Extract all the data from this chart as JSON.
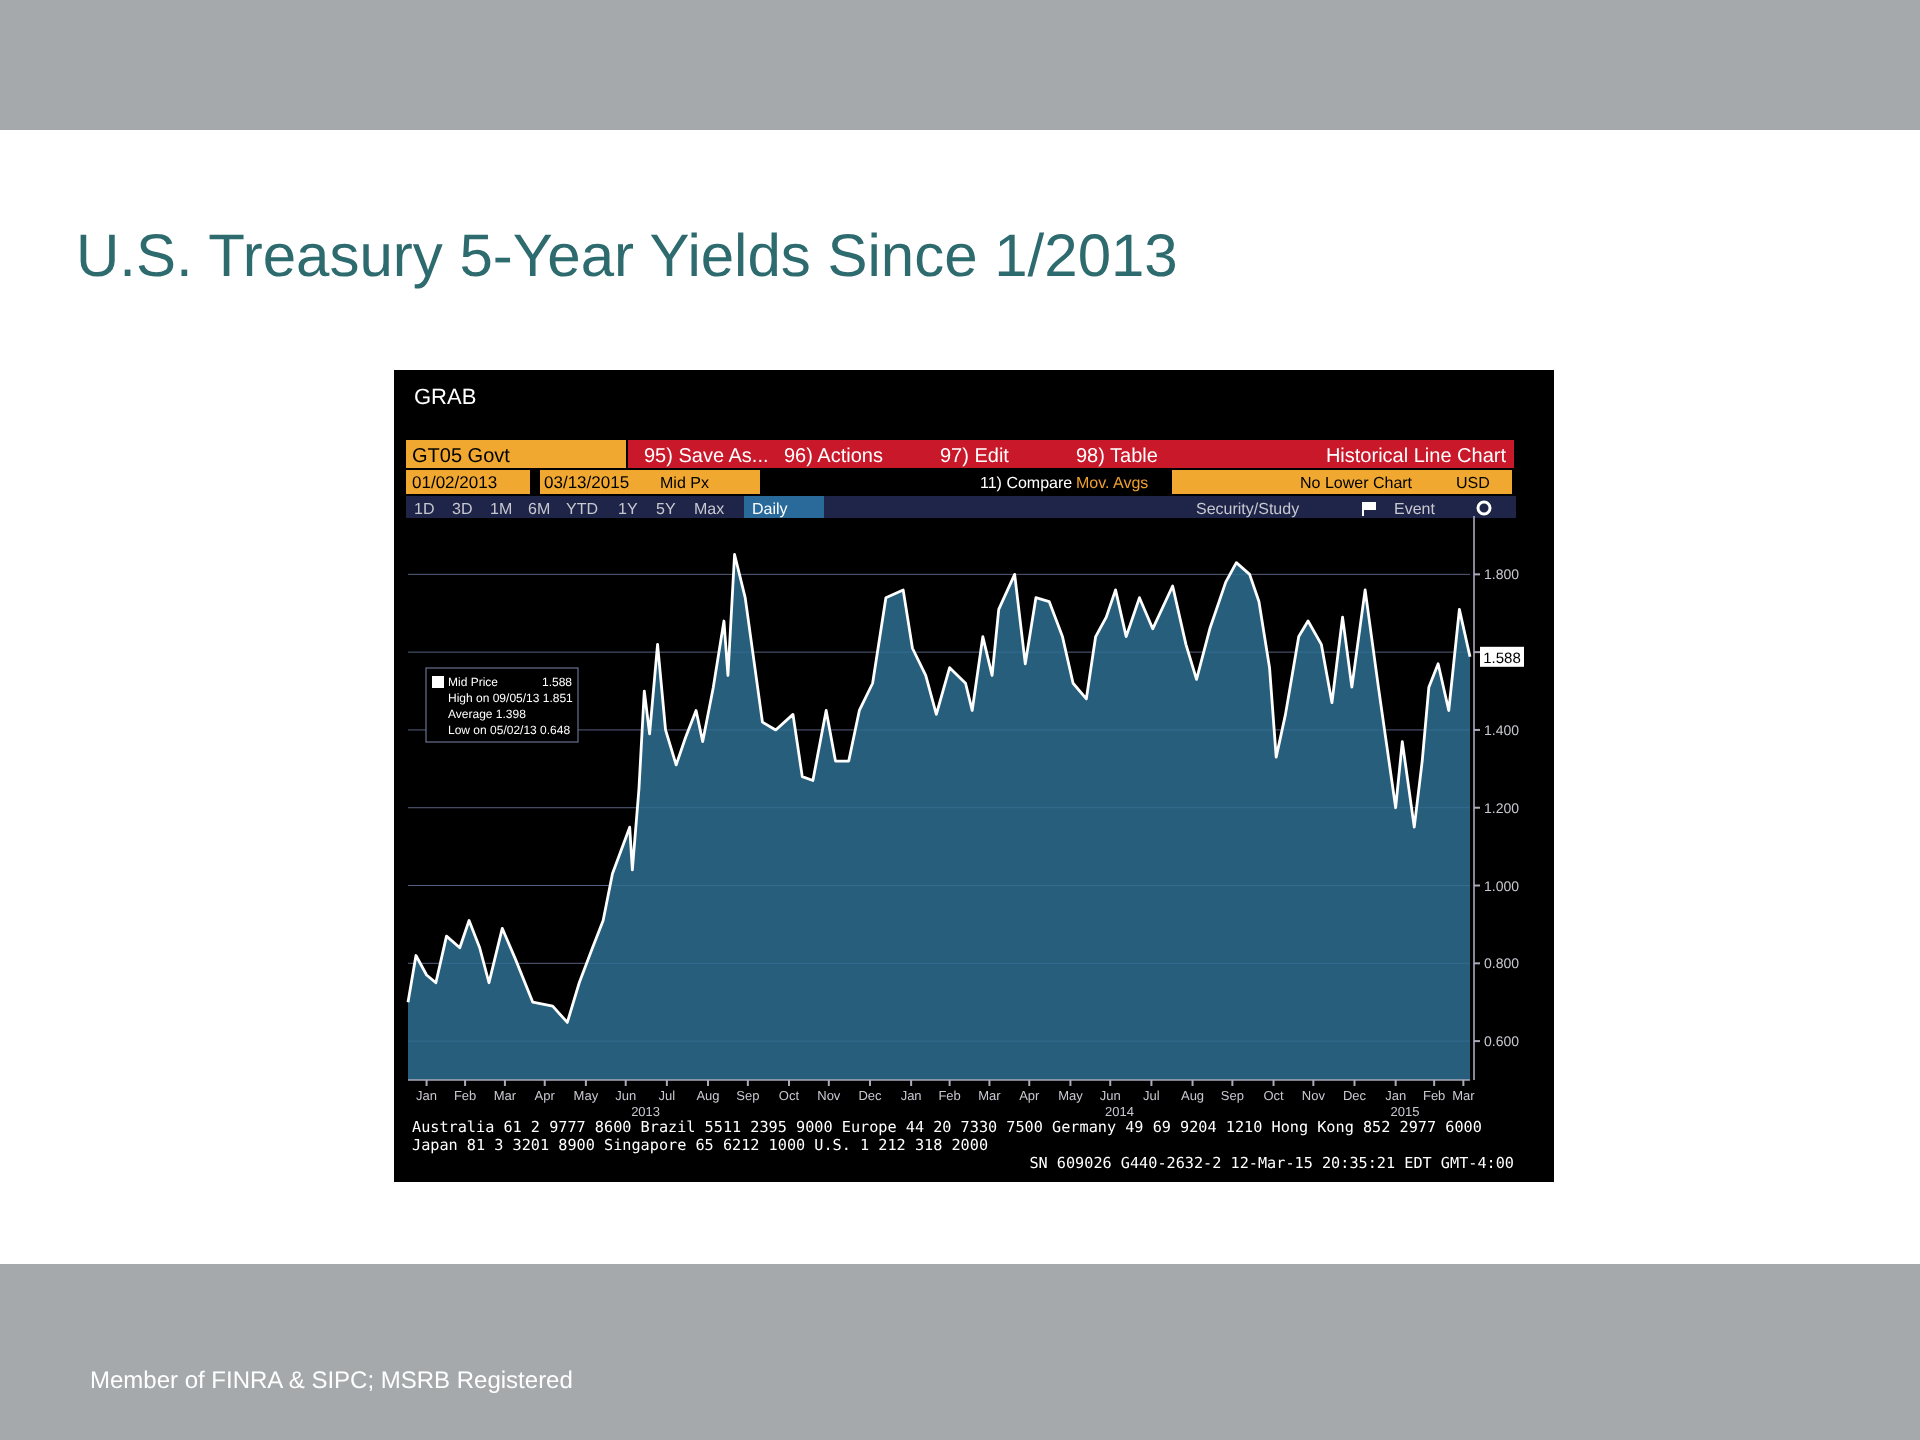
{
  "chart_data": {
    "type": "area",
    "title": "U.S. Treasury 5-Year Yields Since 1/2013",
    "x": [
      "2013-01-02",
      "2013-01-08",
      "2013-01-16",
      "2013-01-23",
      "2013-01-31",
      "2013-02-10",
      "2013-02-17",
      "2013-02-25",
      "2013-03-04",
      "2013-03-14",
      "2013-03-24",
      "2013-04-06",
      "2013-04-21",
      "2013-05-02",
      "2013-05-11",
      "2013-05-21",
      "2013-05-29",
      "2013-06-05",
      "2013-06-18",
      "2013-06-20",
      "2013-06-25",
      "2013-06-29",
      "2013-07-03",
      "2013-07-09",
      "2013-07-15",
      "2013-07-23",
      "2013-07-30",
      "2013-08-07",
      "2013-08-12",
      "2013-08-20",
      "2013-08-28",
      "2013-08-31",
      "2013-09-05",
      "2013-09-13",
      "2013-09-26",
      "2013-10-06",
      "2013-10-19",
      "2013-10-26",
      "2013-11-03",
      "2013-11-13",
      "2013-11-20",
      "2013-11-30",
      "2013-12-08",
      "2013-12-18",
      "2013-12-28",
      "2014-01-10",
      "2014-01-17",
      "2014-01-27",
      "2014-02-04",
      "2014-02-14",
      "2014-02-26",
      "2014-03-03",
      "2014-03-11",
      "2014-03-18",
      "2014-03-23",
      "2014-04-04",
      "2014-04-12",
      "2014-04-20",
      "2014-04-30",
      "2014-05-10",
      "2014-05-18",
      "2014-05-28",
      "2014-06-04",
      "2014-06-12",
      "2014-06-19",
      "2014-06-27",
      "2014-07-07",
      "2014-07-17",
      "2014-08-01",
      "2014-08-11",
      "2014-08-19",
      "2014-08-29",
      "2014-09-10",
      "2014-09-18",
      "2014-09-28",
      "2014-10-05",
      "2014-10-13",
      "2014-10-18",
      "2014-10-25",
      "2014-11-04",
      "2014-11-11",
      "2014-11-21",
      "2014-11-29",
      "2014-12-07",
      "2014-12-14",
      "2014-12-24",
      "2015-01-03",
      "2015-01-16",
      "2015-01-21",
      "2015-01-30",
      "2015-02-05",
      "2015-02-10",
      "2015-02-17",
      "2015-02-25",
      "2015-03-05",
      "2015-03-13"
    ],
    "series": [
      {
        "name": "Mid Price",
        "color": "#ffffff",
        "values": [
          0.7,
          0.82,
          0.77,
          0.75,
          0.87,
          0.84,
          0.91,
          0.84,
          0.75,
          0.89,
          0.81,
          0.7,
          0.69,
          0.648,
          0.75,
          0.84,
          0.91,
          1.03,
          1.15,
          1.04,
          1.25,
          1.5,
          1.39,
          1.62,
          1.4,
          1.31,
          1.38,
          1.45,
          1.37,
          1.51,
          1.68,
          1.54,
          1.851,
          1.74,
          1.42,
          1.4,
          1.44,
          1.28,
          1.27,
          1.45,
          1.32,
          1.32,
          1.45,
          1.52,
          1.74,
          1.76,
          1.61,
          1.54,
          1.44,
          1.56,
          1.52,
          1.45,
          1.64,
          1.54,
          1.71,
          1.8,
          1.57,
          1.74,
          1.73,
          1.64,
          1.52,
          1.48,
          1.64,
          1.69,
          1.76,
          1.64,
          1.74,
          1.66,
          1.77,
          1.62,
          1.53,
          1.66,
          1.78,
          1.83,
          1.8,
          1.73,
          1.56,
          1.33,
          1.44,
          1.64,
          1.68,
          1.62,
          1.47,
          1.69,
          1.51,
          1.76,
          1.51,
          1.2,
          1.37,
          1.15,
          1.32,
          1.51,
          1.57,
          1.45,
          1.71,
          1.588
        ],
        "value_labels": [
          null,
          null,
          null,
          null,
          null,
          null,
          null,
          null,
          null,
          null,
          null,
          null,
          null,
          null,
          null,
          null,
          null,
          null,
          null,
          null,
          null,
          null,
          null,
          null,
          null,
          null,
          null,
          null,
          null,
          null,
          null,
          null,
          null,
          null,
          null,
          null,
          null,
          null,
          null,
          null,
          null,
          null,
          null,
          null,
          null,
          null,
          null,
          null,
          null,
          null,
          null,
          null,
          null,
          null,
          null,
          null,
          null,
          null,
          null,
          null,
          null,
          null,
          null,
          null,
          null,
          null,
          null,
          null,
          null,
          null,
          null,
          null,
          null,
          null,
          null,
          null,
          null,
          null,
          null,
          null,
          null,
          null,
          null,
          null,
          null,
          null,
          null,
          null,
          null,
          null,
          null,
          null,
          null,
          null,
          null,
          "1.588"
        ]
      }
    ],
    "xlim": [
      "2013-01-02",
      "2015-03-13"
    ],
    "xticks": [
      {
        "value": "2013-01-16",
        "label": "Jan"
      },
      {
        "value": "2013-02-14",
        "label": "Feb"
      },
      {
        "value": "2013-03-16",
        "label": "Mar"
      },
      {
        "value": "2013-04-15",
        "label": "Apr"
      },
      {
        "value": "2013-05-16",
        "label": "May"
      },
      {
        "value": "2013-06-15",
        "label": "Jun"
      },
      {
        "value": "2013-07-16",
        "label": "Jul"
      },
      {
        "value": "2013-08-16",
        "label": "Aug"
      },
      {
        "value": "2013-09-15",
        "label": "Sep"
      },
      {
        "value": "2013-10-16",
        "label": "Oct"
      },
      {
        "value": "2013-11-15",
        "label": "Nov"
      },
      {
        "value": "2013-12-16",
        "label": "Dec"
      },
      {
        "value": "2014-01-16",
        "label": "Jan"
      },
      {
        "value": "2014-02-14",
        "label": "Feb"
      },
      {
        "value": "2014-03-16",
        "label": "Mar"
      },
      {
        "value": "2014-04-15",
        "label": "Apr"
      },
      {
        "value": "2014-05-16",
        "label": "May"
      },
      {
        "value": "2014-06-15",
        "label": "Jun"
      },
      {
        "value": "2014-07-16",
        "label": "Jul"
      },
      {
        "value": "2014-08-16",
        "label": "Aug"
      },
      {
        "value": "2014-09-15",
        "label": "Sep"
      },
      {
        "value": "2014-10-16",
        "label": "Oct"
      },
      {
        "value": "2014-11-15",
        "label": "Nov"
      },
      {
        "value": "2014-12-16",
        "label": "Dec"
      },
      {
        "value": "2015-01-16",
        "label": "Jan"
      },
      {
        "value": "2015-02-14",
        "label": "Feb"
      },
      {
        "value": "2015-03-08",
        "label": "Mar"
      }
    ],
    "x2lim": [
      "2013-01-02",
      "2015-03-13"
    ],
    "x2ticks": [
      {
        "value": "2013-06-30",
        "label": "2013"
      },
      {
        "value": "2014-06-22",
        "label": "2014"
      },
      {
        "value": "2015-01-23",
        "label": "2015"
      }
    ],
    "ylim": [
      0.5,
      1.95
    ],
    "yticks": [
      {
        "value": 0.6,
        "label": "0.600"
      },
      {
        "value": 0.8,
        "label": "0.800"
      },
      {
        "value": 1.0,
        "label": "1.000"
      },
      {
        "value": 1.2,
        "label": "1.200"
      },
      {
        "value": 1.4,
        "label": "1.400"
      },
      {
        "value": 1.6,
        "label": null
      },
      {
        "value": 1.8,
        "label": "1.800"
      }
    ],
    "grid": "y",
    "legend": "top left",
    "annotations": [
      "GRAB",
      "GT05 Govt",
      "95) Save As...",
      "96) Actions",
      "97) Edit",
      "98) Table",
      "Historical Line Chart",
      "01/02/2013",
      "03/13/2015",
      "Mid Px",
      "11) Compare",
      "Mov. Avgs",
      "No Lower Chart",
      "USD",
      "1D",
      "3D",
      "1M",
      "6M",
      "YTD",
      "1Y",
      "5Y",
      "Max",
      "Daily",
      "Security/Study",
      "Event",
      "High on 09/05/13 1.851",
      "Average 1.398",
      "Low on 05/02/13 0.648",
      "Australia 61 2 9777 8600 Brazil 5511 2395 9000 Europe 44 20 7330 7500 Germany 49 69 9204 1210 Hong Kong 852 2977 6000",
      "Japan 81 3 3201 8900      Singapore 65 6212 1000      U.S. 1 212 318 2000",
      "SN 609026 G440-2632-2 12-Mar-15 20:35:21 EDT  GMT-4:00",
      "Member of FINRA & SIPC; MSRB Registered"
    ]
  }
}
